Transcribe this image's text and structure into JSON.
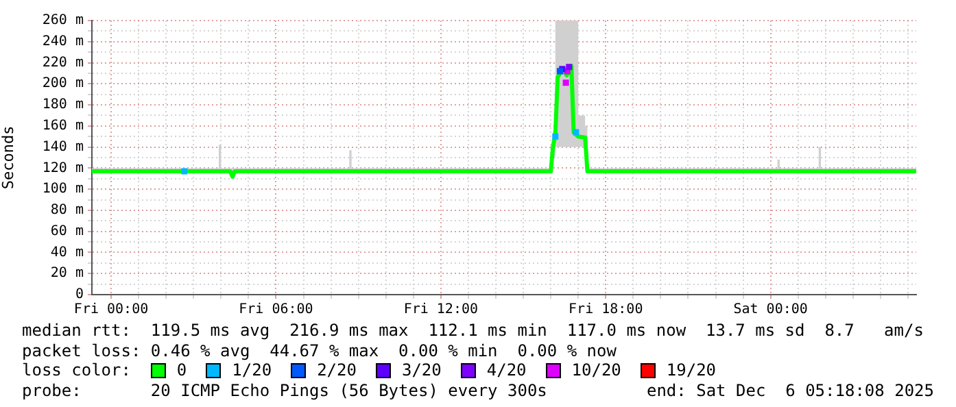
{
  "chart_data": {
    "type": "line",
    "ylabel": "Seconds",
    "legend": "bottom",
    "legend_title": "loss color:",
    "grid": true,
    "xlim": [
      "2025-12-04T23:18",
      "2025-12-06T05:18"
    ],
    "xticks": [
      {
        "value": "2025-12-05T00:00",
        "label": "Fri 00:00"
      },
      {
        "value": "2025-12-05T01:00",
        "label": null
      },
      {
        "value": "2025-12-05T02:00",
        "label": null
      },
      {
        "value": "2025-12-05T03:00",
        "label": null
      },
      {
        "value": "2025-12-05T04:00",
        "label": null
      },
      {
        "value": "2025-12-05T05:00",
        "label": null
      },
      {
        "value": "2025-12-05T06:00",
        "label": "Fri 06:00"
      },
      {
        "value": "2025-12-05T07:00",
        "label": null
      },
      {
        "value": "2025-12-05T08:00",
        "label": null
      },
      {
        "value": "2025-12-05T09:00",
        "label": null
      },
      {
        "value": "2025-12-05T10:00",
        "label": null
      },
      {
        "value": "2025-12-05T11:00",
        "label": null
      },
      {
        "value": "2025-12-05T12:00",
        "label": "Fri 12:00"
      },
      {
        "value": "2025-12-05T13:00",
        "label": null
      },
      {
        "value": "2025-12-05T14:00",
        "label": null
      },
      {
        "value": "2025-12-05T15:00",
        "label": null
      },
      {
        "value": "2025-12-05T16:00",
        "label": null
      },
      {
        "value": "2025-12-05T17:00",
        "label": null
      },
      {
        "value": "2025-12-05T18:00",
        "label": "Fri 18:00"
      },
      {
        "value": "2025-12-05T19:00",
        "label": null
      },
      {
        "value": "2025-12-05T20:00",
        "label": null
      },
      {
        "value": "2025-12-05T21:00",
        "label": null
      },
      {
        "value": "2025-12-05T22:00",
        "label": null
      },
      {
        "value": "2025-12-05T23:00",
        "label": null
      },
      {
        "value": "2025-12-06T00:00",
        "label": "Sat 00:00"
      },
      {
        "value": "2025-12-06T01:00",
        "label": null
      },
      {
        "value": "2025-12-06T02:00",
        "label": null
      },
      {
        "value": "2025-12-06T03:00",
        "label": null
      },
      {
        "value": "2025-12-06T04:00",
        "label": null
      },
      {
        "value": "2025-12-06T05:00",
        "label": null
      }
    ],
    "ylim": [
      0,
      260
    ],
    "yticks": [
      0,
      {
        "value": 10,
        "label": null
      },
      {
        "value": 20,
        "label": "20 m"
      },
      {
        "value": 30,
        "label": null
      },
      {
        "value": 40,
        "label": "40 m"
      },
      {
        "value": 50,
        "label": null
      },
      {
        "value": 60,
        "label": "60 m"
      },
      {
        "value": 70,
        "label": null
      },
      {
        "value": 80,
        "label": "80 m"
      },
      {
        "value": 90,
        "label": null
      },
      {
        "value": 100,
        "label": "100 m"
      },
      {
        "value": 110,
        "label": null
      },
      {
        "value": 120,
        "label": "120 m"
      },
      {
        "value": 130,
        "label": null
      },
      {
        "value": 140,
        "label": "140 m"
      },
      {
        "value": 150,
        "label": null
      },
      {
        "value": 160,
        "label": "160 m"
      },
      {
        "value": 170,
        "label": null
      },
      {
        "value": 180,
        "label": "180 m"
      },
      {
        "value": 190,
        "label": null
      },
      {
        "value": 200,
        "label": "200 m"
      },
      {
        "value": 210,
        "label": null
      },
      {
        "value": 220,
        "label": "220 m"
      },
      {
        "value": 230,
        "label": null
      },
      {
        "value": 240,
        "label": "240 m"
      },
      {
        "value": 250,
        "label": null
      },
      {
        "value": 260,
        "label": "260 m"
      }
    ],
    "annotations": [
      "median rtt:  119.5 ms avg  216.9 ms max  112.1 ms min  117.0 ms now  13.7 ms sd  8.7   am/s",
      "packet loss: 0.46 % avg  44.67 % max  0.00 % min  0.00 % now",
      "probe:       20 ICMP Echo Pings (56 Bytes) every 300s",
      "end: Sat Dec  6 05:18:08 2025"
    ],
    "series": [
      {
        "name": "0",
        "color": "#00ff00",
        "x": [
          "2025-12-04T23:18",
          "2025-12-05T02:00",
          "2025-12-05T03:50",
          "2025-12-05T03:55",
          "2025-12-05T04:00",
          "2025-12-05T04:20",
          "2025-12-05T04:25",
          "2025-12-05T04:30",
          "2025-12-05T08:35",
          "2025-12-05T08:40",
          "2025-12-05T08:45",
          "2025-12-05T16:00",
          "2025-12-05T16:05",
          "2025-12-05T16:10",
          "2025-12-05T16:15",
          "2025-12-05T16:25",
          "2025-12-05T16:35",
          "2025-12-05T16:45",
          "2025-12-05T16:50",
          "2025-12-05T17:00",
          "2025-12-05T17:15",
          "2025-12-05T17:20",
          "2025-12-06T00:10",
          "2025-12-06T00:15",
          "2025-12-06T00:20",
          "2025-12-06T01:40",
          "2025-12-06T01:45",
          "2025-12-06T01:50",
          "2025-12-06T05:18"
        ],
        "values": [
          117,
          117,
          117,
          117,
          117,
          117,
          112,
          117,
          117,
          117,
          117,
          117,
          141,
          152,
          206,
          214,
          208,
          217,
          154,
          150,
          149,
          117,
          117,
          117,
          117,
          117,
          117,
          117,
          117
        ],
        "lower": [
          115,
          115,
          115,
          115,
          115,
          115,
          110,
          115,
          115,
          115,
          115,
          115,
          130,
          140,
          140,
          140,
          140,
          140,
          140,
          140,
          140,
          115,
          115,
          115,
          115,
          115,
          115,
          115,
          115
        ],
        "upper": [
          120,
          120,
          120,
          142,
          120,
          120,
          120,
          120,
          120,
          137,
          120,
          120,
          155,
          260,
          260,
          260,
          260,
          260,
          260,
          170,
          160,
          120,
          120,
          128,
          120,
          120,
          140,
          120,
          120
        ]
      },
      {
        "name": "1/20",
        "color": "#00b8ff",
        "type": "scatter",
        "marker": "square",
        "x": [
          "2025-12-05T02:40",
          "2025-12-05T16:10",
          "2025-12-05T16:55"
        ],
        "values": [
          117,
          150,
          154
        ]
      },
      {
        "name": "2/20",
        "color": "#0059ff",
        "type": "scatter",
        "marker": "square",
        "x": [
          "2025-12-05T16:20"
        ],
        "values": [
          212
        ]
      },
      {
        "name": "3/20",
        "color": "#5e00ff",
        "type": "scatter",
        "marker": "square",
        "x": [
          "2025-12-05T16:25"
        ],
        "values": [
          214
        ]
      },
      {
        "name": "4/20",
        "color": "#7e00ff",
        "type": "scatter",
        "marker": "square",
        "x": [
          "2025-12-05T16:40"
        ],
        "values": [
          216
        ]
      },
      {
        "name": "10/20",
        "color": "#dd00ff",
        "type": "scatter",
        "marker": "square",
        "x": [
          "2025-12-05T16:33",
          "2025-12-05T16:36"
        ],
        "values": [
          201,
          212
        ]
      },
      {
        "name": "19/20",
        "color": "#ff0000",
        "type": "scatter",
        "marker": "square"
      }
    ]
  }
}
